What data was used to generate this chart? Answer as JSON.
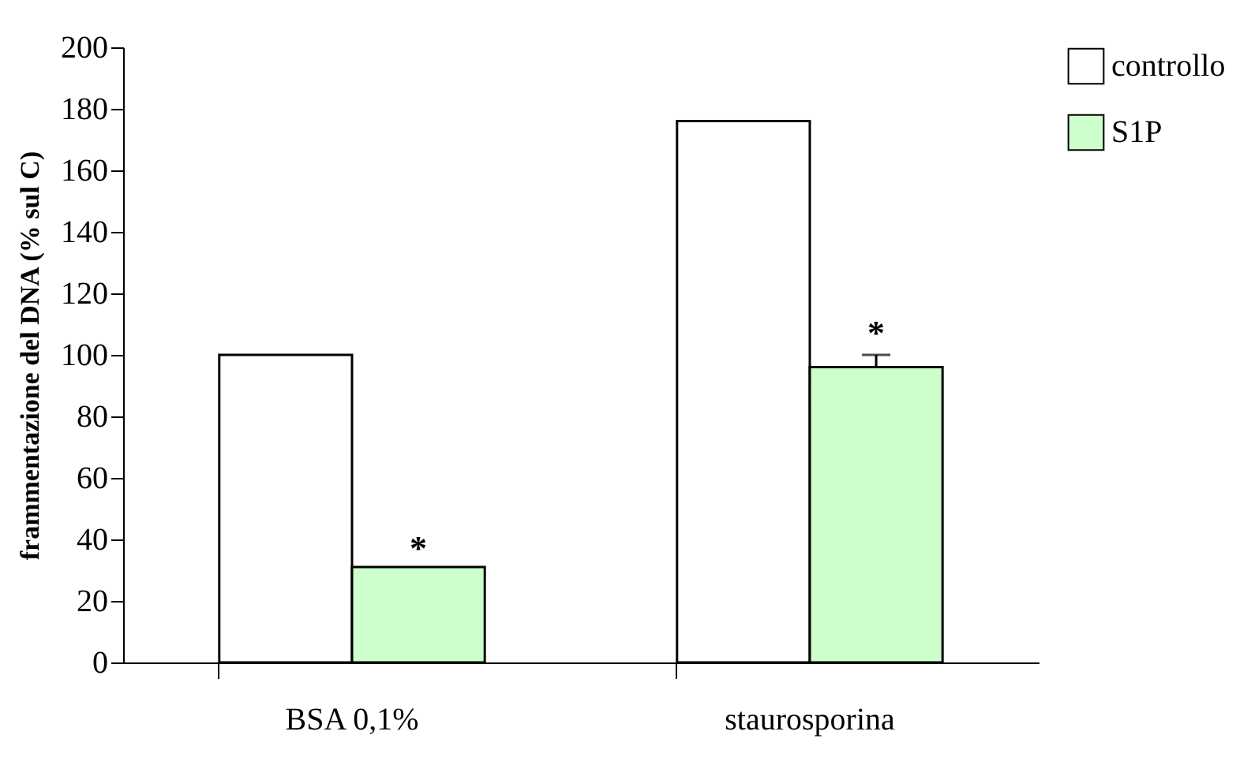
{
  "chart_data": {
    "type": "bar",
    "ylabel": "frammentazione del DNA (% sul C)",
    "categories": [
      "BSA 0,1%",
      "staurosporina"
    ],
    "series": [
      {
        "name": "controllo",
        "color": "#ffffff",
        "values": [
          100,
          176
        ]
      },
      {
        "name": "S1P",
        "color": "#ccffcc",
        "values": [
          31,
          96
        ],
        "errors": [
          null,
          [
            96,
            100
          ]
        ]
      }
    ],
    "ylim": [
      0,
      200
    ],
    "yticks": [
      0,
      20,
      40,
      60,
      80,
      100,
      120,
      140,
      160,
      180,
      200
    ],
    "grid": false,
    "legend": "top right",
    "annotations": [
      {
        "text": "*",
        "x": "BSA 0,1%",
        "y": 37
      },
      {
        "text": "*",
        "x": "staurosporina",
        "y": 107
      }
    ]
  }
}
